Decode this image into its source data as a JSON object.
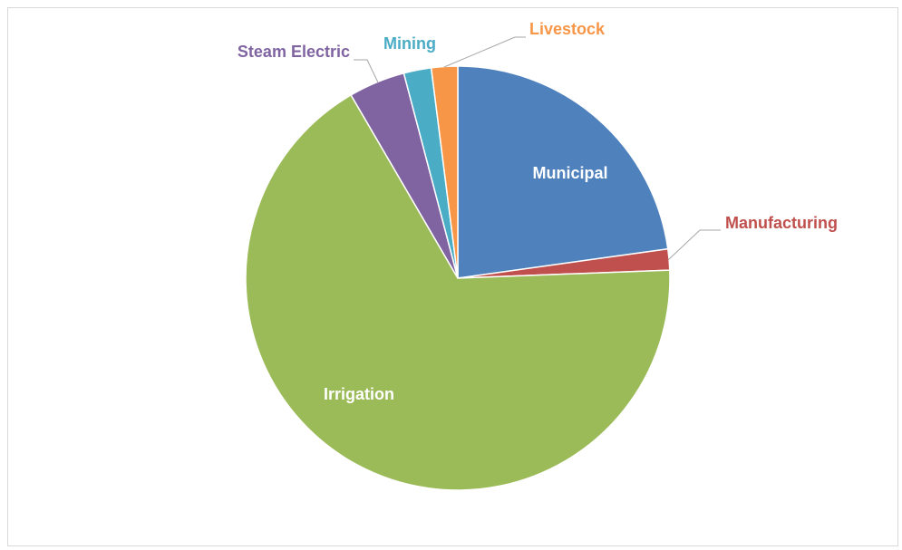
{
  "chart_data": {
    "type": "pie",
    "categories": [
      "Municipal",
      "Manufacturing",
      "Irrigation",
      "Steam Electric",
      "Mining",
      "Livestock"
    ],
    "values": [
      22.8,
      1.6,
      67.2,
      4.3,
      2.1,
      2.0
    ],
    "colors": [
      "#4f81bd",
      "#c0504d",
      "#9bbb59",
      "#8064a2",
      "#4bacc6",
      "#f79646"
    ]
  }
}
